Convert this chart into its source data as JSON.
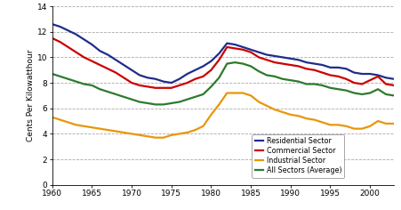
{
  "years": [
    1960,
    1961,
    1962,
    1963,
    1964,
    1965,
    1966,
    1967,
    1968,
    1969,
    1970,
    1971,
    1972,
    1973,
    1974,
    1975,
    1976,
    1977,
    1978,
    1979,
    1980,
    1981,
    1982,
    1983,
    1984,
    1985,
    1986,
    1987,
    1988,
    1989,
    1990,
    1991,
    1992,
    1993,
    1994,
    1995,
    1996,
    1997,
    1998,
    1999,
    2000,
    2001,
    2002,
    2003
  ],
  "residential": [
    12.6,
    12.4,
    12.1,
    11.8,
    11.4,
    11.0,
    10.5,
    10.2,
    9.8,
    9.4,
    9.0,
    8.6,
    8.4,
    8.3,
    8.1,
    8.0,
    8.3,
    8.7,
    9.0,
    9.3,
    9.7,
    10.3,
    11.1,
    11.0,
    10.8,
    10.6,
    10.4,
    10.2,
    10.1,
    10.0,
    9.9,
    9.8,
    9.6,
    9.5,
    9.4,
    9.2,
    9.2,
    9.1,
    8.8,
    8.7,
    8.7,
    8.6,
    8.4,
    8.3
  ],
  "commercial": [
    11.5,
    11.2,
    10.8,
    10.4,
    10.0,
    9.7,
    9.4,
    9.1,
    8.8,
    8.4,
    8.0,
    7.8,
    7.7,
    7.6,
    7.6,
    7.6,
    7.8,
    8.0,
    8.3,
    8.5,
    9.0,
    9.8,
    10.8,
    10.7,
    10.6,
    10.4,
    10.0,
    9.8,
    9.6,
    9.5,
    9.4,
    9.3,
    9.1,
    9.0,
    8.8,
    8.6,
    8.5,
    8.3,
    8.0,
    7.9,
    8.2,
    8.5,
    7.9,
    7.8
  ],
  "industrial": [
    5.3,
    5.1,
    4.9,
    4.7,
    4.6,
    4.5,
    4.4,
    4.3,
    4.2,
    4.1,
    4.0,
    3.9,
    3.8,
    3.7,
    3.7,
    3.9,
    4.0,
    4.1,
    4.3,
    4.6,
    5.5,
    6.3,
    7.2,
    7.2,
    7.2,
    7.0,
    6.5,
    6.2,
    5.9,
    5.7,
    5.5,
    5.4,
    5.2,
    5.1,
    4.9,
    4.7,
    4.7,
    4.6,
    4.4,
    4.4,
    4.6,
    5.0,
    4.8,
    4.8
  ],
  "all_sectors": [
    8.7,
    8.5,
    8.3,
    8.1,
    7.9,
    7.8,
    7.5,
    7.3,
    7.1,
    6.9,
    6.7,
    6.5,
    6.4,
    6.3,
    6.3,
    6.4,
    6.5,
    6.7,
    6.9,
    7.1,
    7.7,
    8.4,
    9.5,
    9.6,
    9.5,
    9.3,
    8.9,
    8.6,
    8.5,
    8.3,
    8.2,
    8.1,
    7.9,
    7.9,
    7.8,
    7.6,
    7.5,
    7.4,
    7.2,
    7.1,
    7.2,
    7.5,
    7.1,
    7.0
  ],
  "residential_color": "#1f2d8a",
  "commercial_color": "#cc0000",
  "industrial_color": "#e8960a",
  "all_sectors_color": "#2d7a2d",
  "ylabel": "Cents Per Kilowatthour",
  "ylim": [
    0,
    14
  ],
  "yticks": [
    0,
    2,
    4,
    6,
    8,
    10,
    12,
    14
  ],
  "xlim": [
    1960,
    2003
  ],
  "xticks": [
    1960,
    1965,
    1970,
    1975,
    1980,
    1985,
    1990,
    1995,
    2000
  ],
  "legend_labels": [
    "Residential Sector",
    "Commercial Sector",
    "Industrial Sector",
    "All Sectors (Average)"
  ],
  "linewidth": 1.6,
  "background_color": "#ffffff"
}
